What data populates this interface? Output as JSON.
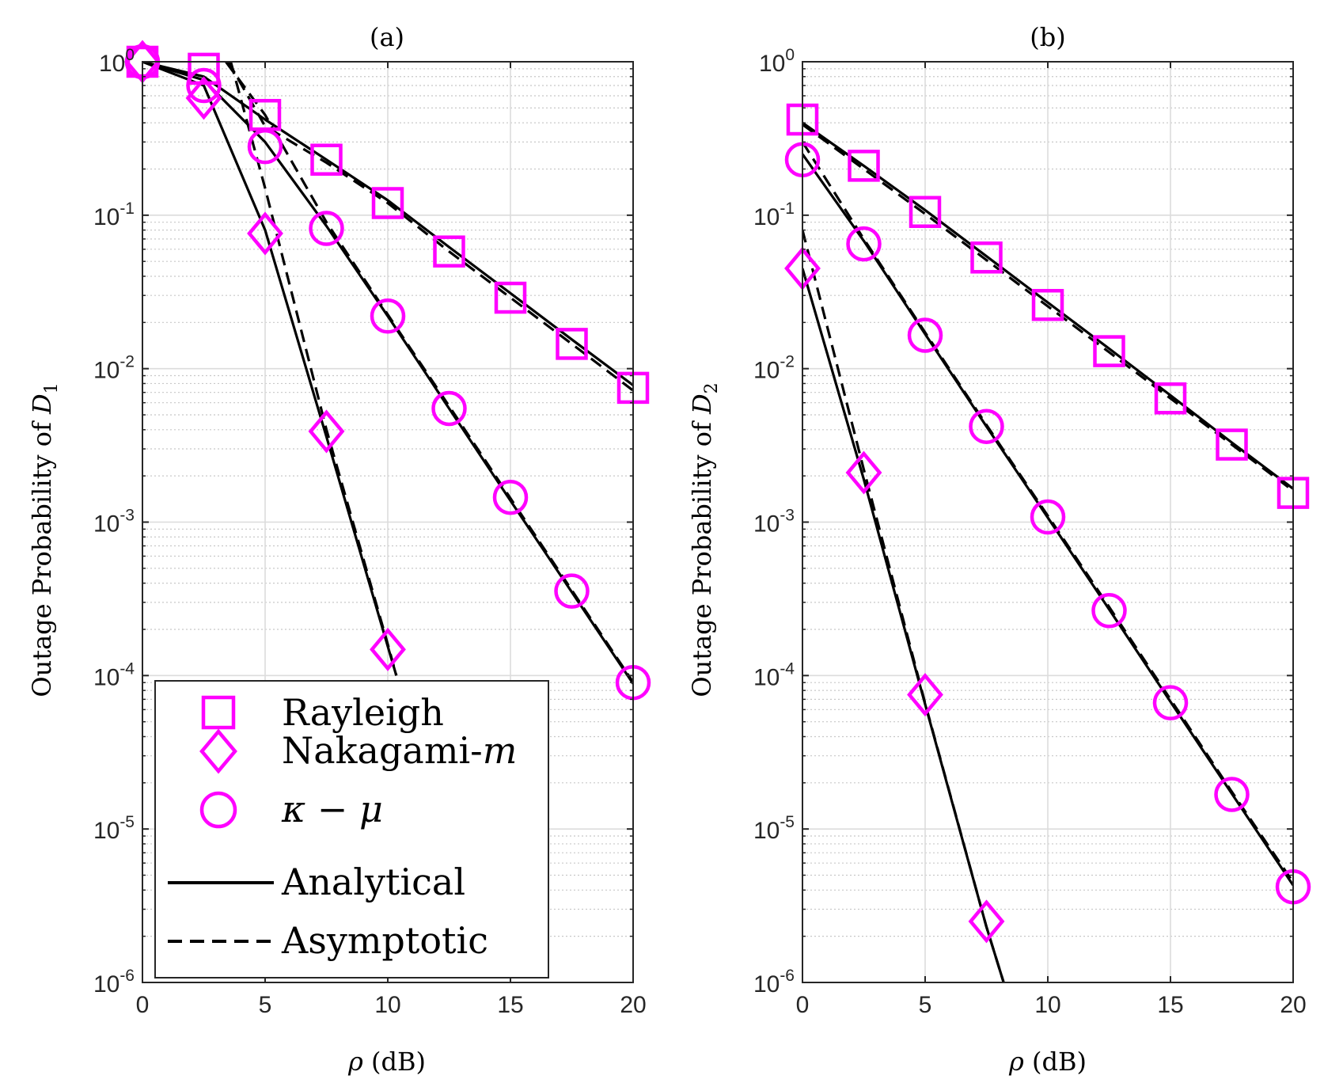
{
  "colors": {
    "marker": "#ff00ff",
    "line": "#000000",
    "grid": "#dcdcdc",
    "axis": "#262626"
  },
  "legend": {
    "items": [
      {
        "label": "Rayleigh",
        "type": "marker",
        "symbol": "square"
      },
      {
        "label": "Nakagami-m",
        "type": "marker",
        "symbol": "diamond"
      },
      {
        "label": "κ − μ",
        "type": "marker",
        "symbol": "circle"
      },
      {
        "label": "Analytical",
        "type": "line",
        "style": "solid"
      },
      {
        "label": "Asymptotic",
        "type": "line",
        "style": "dashed"
      }
    ]
  },
  "chart_data": [
    {
      "type": "line",
      "title": "(a)",
      "xlabel": "ρ (dB)",
      "ylabel": "Outage Probability of D1",
      "yscale": "log",
      "xlim": [
        0,
        20
      ],
      "ylim": [
        1e-06,
        1
      ],
      "xticks": [
        0,
        5,
        10,
        15,
        20
      ],
      "yticks": [
        {
          "base": "10",
          "exp": "-6"
        },
        {
          "base": "10",
          "exp": "-5"
        },
        {
          "base": "10",
          "exp": "-4"
        },
        {
          "base": "10",
          "exp": "-3"
        },
        {
          "base": "10",
          "exp": "-2"
        },
        {
          "base": "10",
          "exp": "-1"
        },
        {
          "base": "10",
          "exp": "0"
        }
      ],
      "grid": true,
      "legend_location": "bottom-left",
      "series": [
        {
          "name": "Rayleigh simulation",
          "symbol": "square",
          "x": [
            0,
            2.5,
            5,
            7.5,
            10,
            12.5,
            15,
            17.5,
            20
          ],
          "y": [
            1.0,
            0.9,
            0.45,
            0.23,
            0.12,
            0.058,
            0.029,
            0.0145,
            0.0075
          ]
        },
        {
          "name": "Rayleigh analytical",
          "style": "solid",
          "x": [
            0,
            2.5,
            5,
            7.5,
            10,
            12.5,
            15,
            17.5,
            20
          ],
          "y": [
            1.0,
            0.8,
            0.42,
            0.23,
            0.125,
            0.062,
            0.031,
            0.0155,
            0.0078
          ]
        },
        {
          "name": "Rayleigh asymptotic",
          "style": "dashed",
          "x": [
            3.5,
            5,
            7.5,
            10,
            12.5,
            15,
            17.5,
            20
          ],
          "y": [
            1.0,
            0.38,
            0.22,
            0.12,
            0.058,
            0.029,
            0.0145,
            0.0072
          ]
        },
        {
          "name": "Nakagami-m simulation",
          "symbol": "diamond",
          "x": [
            0,
            2.5,
            5,
            7.5,
            10
          ],
          "y": [
            1.0,
            0.58,
            0.076,
            0.0039,
            0.000148
          ]
        },
        {
          "name": "Nakagami-m analytical",
          "style": "solid",
          "x": [
            0,
            2.5,
            5,
            7.5,
            10,
            10.35
          ],
          "y": [
            1.0,
            0.7,
            0.08,
            0.0036,
            0.000155,
            0.0001
          ]
        },
        {
          "name": "Nakagami-m asymptotic",
          "style": "dashed",
          "x": [
            3.6,
            5,
            7.5,
            10,
            10.35
          ],
          "y": [
            1.0,
            0.15,
            0.004,
            0.00016,
            0.0001
          ]
        },
        {
          "name": "κ − μ simulation",
          "symbol": "circle",
          "x": [
            0,
            2.5,
            5,
            7.5,
            10,
            12.5,
            15,
            17.5,
            20
          ],
          "y": [
            1.0,
            0.7,
            0.28,
            0.082,
            0.022,
            0.0055,
            0.00145,
            0.000355,
            9e-05
          ]
        },
        {
          "name": "κ − μ analytical",
          "style": "solid",
          "x": [
            0,
            2.5,
            5,
            7.5,
            10,
            12.5,
            15,
            17.5,
            20
          ],
          "y": [
            1.0,
            0.76,
            0.3,
            0.085,
            0.022,
            0.0055,
            0.00138,
            0.00035,
            8.85e-05
          ]
        },
        {
          "name": "κ − μ asymptotic",
          "style": "dashed",
          "x": [
            3.4,
            5,
            7.5,
            10,
            12.5,
            15,
            17.5,
            20
          ],
          "y": [
            1.0,
            0.45,
            0.09,
            0.0225,
            0.0057,
            0.00143,
            0.00036,
            9.05e-05
          ]
        }
      ]
    },
    {
      "type": "line",
      "title": "(b)",
      "xlabel": "ρ (dB)",
      "ylabel": "Outage Probability of D2",
      "yscale": "log",
      "xlim": [
        0,
        20
      ],
      "ylim": [
        1e-06,
        1
      ],
      "xticks": [
        0,
        5,
        10,
        15,
        20
      ],
      "yticks": [
        {
          "base": "10",
          "exp": "-6"
        },
        {
          "base": "10",
          "exp": "-5"
        },
        {
          "base": "10",
          "exp": "-4"
        },
        {
          "base": "10",
          "exp": "-3"
        },
        {
          "base": "10",
          "exp": "-2"
        },
        {
          "base": "10",
          "exp": "-1"
        },
        {
          "base": "10",
          "exp": "0"
        }
      ],
      "grid": true,
      "series": [
        {
          "name": "Rayleigh simulation",
          "symbol": "square",
          "x": [
            0,
            2.5,
            5,
            7.5,
            10,
            12.5,
            15,
            17.5,
            20
          ],
          "y": [
            0.42,
            0.21,
            0.105,
            0.053,
            0.026,
            0.013,
            0.0064,
            0.0032,
            0.00155
          ]
        },
        {
          "name": "Rayleigh analytical",
          "style": "solid",
          "x": [
            0,
            2.5,
            5,
            7.5,
            10,
            12.5,
            15,
            17.5,
            20
          ],
          "y": [
            0.4,
            0.21,
            0.108,
            0.054,
            0.027,
            0.0135,
            0.0067,
            0.0033,
            0.00165
          ]
        },
        {
          "name": "Rayleigh asymptotic",
          "style": "dashed",
          "x": [
            0,
            2.5,
            5,
            7.5,
            10,
            12.5,
            15,
            17.5,
            20
          ],
          "y": [
            0.39,
            0.2,
            0.102,
            0.051,
            0.0255,
            0.0128,
            0.0064,
            0.0032,
            0.0016
          ]
        },
        {
          "name": "Nakagami-m simulation",
          "symbol": "diamond",
          "x": [
            0,
            2.5,
            5,
            7.5
          ],
          "y": [
            0.045,
            0.0021,
            7.5e-05,
            2.5e-06
          ]
        },
        {
          "name": "Nakagami-m analytical",
          "style": "solid",
          "x": [
            0,
            2.5,
            5,
            7.5,
            8.2
          ],
          "y": [
            0.045,
            0.0019,
            6.5e-05,
            2.3e-06,
            1e-06
          ]
        },
        {
          "name": "Nakagami-m asymptotic",
          "style": "dashed",
          "x": [
            0,
            2.5,
            5,
            7.5,
            8.2
          ],
          "y": [
            0.08,
            0.0022,
            6.6e-05,
            2.3e-06,
            1e-06
          ]
        },
        {
          "name": "κ − μ simulation",
          "symbol": "circle",
          "x": [
            0,
            2.5,
            5,
            7.5,
            10,
            12.5,
            15,
            17.5,
            20
          ],
          "y": [
            0.23,
            0.065,
            0.0165,
            0.0042,
            0.00108,
            0.000265,
            6.65e-05,
            1.68e-05,
            4.2e-06
          ]
        },
        {
          "name": "κ − μ analytical",
          "style": "solid",
          "x": [
            0,
            2.5,
            5,
            7.5,
            10,
            12.5,
            15,
            17.5,
            20
          ],
          "y": [
            0.25,
            0.068,
            0.0168,
            0.0042,
            0.00107,
            0.00027,
            6.75e-05,
            1.7e-05,
            4.3e-06
          ]
        },
        {
          "name": "κ − μ asymptotic",
          "style": "dashed",
          "x": [
            0,
            2.5,
            5,
            7.5,
            10,
            12.5,
            15,
            17.5,
            20
          ],
          "y": [
            0.3,
            0.07,
            0.0172,
            0.0043,
            0.0011,
            0.00028,
            7e-05,
            1.75e-05,
            4.5e-06
          ]
        }
      ]
    }
  ]
}
